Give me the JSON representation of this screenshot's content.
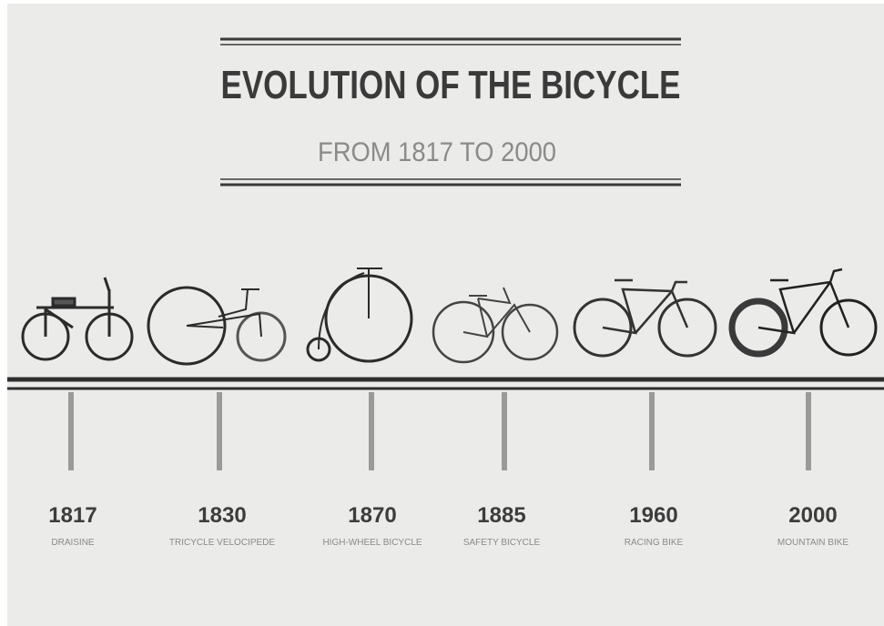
{
  "header": {
    "title": "EVOLUTION OF THE BICYCLE",
    "subtitle": "FROM 1817 TO 2000"
  },
  "timeline": [
    {
      "year": "1817",
      "label": "DRAISINE"
    },
    {
      "year": "1830",
      "label": "TRICYCLE VELOCIPEDE"
    },
    {
      "year": "1870",
      "label": "HIGH-WHEEL BICYCLE"
    },
    {
      "year": "1885",
      "label": "SAFETY BICYCLE"
    },
    {
      "year": "1960",
      "label": "RACING BIKE"
    },
    {
      "year": "2000",
      "label": "MOUNTAIN BIKE"
    }
  ]
}
